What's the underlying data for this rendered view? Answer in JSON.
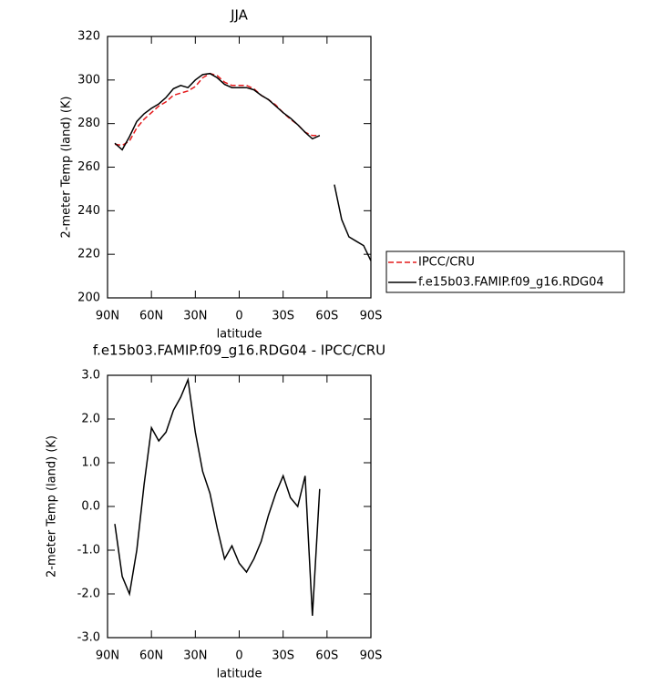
{
  "chart_data": [
    {
      "type": "line",
      "title": "JJA",
      "xlabel": "latitude",
      "ylabel": "2-meter Temp (land) (K)",
      "x": [
        85,
        80,
        75,
        70,
        65,
        60,
        55,
        50,
        45,
        40,
        35,
        30,
        25,
        20,
        15,
        10,
        5,
        0,
        -5,
        -10,
        -15,
        -20,
        -25,
        -30,
        -35,
        -40,
        -45,
        -50,
        -55,
        -60,
        -65,
        -70,
        -75,
        -80,
        -85,
        -90
      ],
      "xlim": [
        90,
        -90
      ],
      "xticks": [
        {
          "value": 90,
          "label": "90N"
        },
        {
          "value": 60,
          "label": "60N"
        },
        {
          "value": 30,
          "label": "30N"
        },
        0,
        {
          "value": -30,
          "label": "30S"
        },
        {
          "value": -60,
          "label": "60S"
        },
        {
          "value": -90,
          "label": "90S"
        }
      ],
      "ylim": [
        200,
        320
      ],
      "yticks": [
        200,
        220,
        240,
        260,
        280,
        300,
        320
      ],
      "legend": "right",
      "series": [
        {
          "name": "IPCC/CRU",
          "color": "#e41a1c",
          "dash": true,
          "values": [
            270.5,
            270,
            272,
            278,
            282,
            285,
            288,
            290,
            293,
            294,
            295,
            297,
            301,
            303,
            302,
            299,
            297.5,
            297.5,
            297.5,
            296,
            293,
            291,
            288.5,
            285,
            282,
            279.5,
            276,
            274.5,
            274.5,
            null,
            null,
            null,
            null,
            null,
            null,
            null
          ]
        },
        {
          "name": "f.e15b03.FAMIP.f09_g16.RDG04",
          "color": "#000000",
          "dash": false,
          "values": [
            271,
            268,
            274,
            281,
            284.5,
            287,
            289,
            292,
            296,
            297.5,
            296.5,
            300,
            302.5,
            303,
            301,
            298,
            296.5,
            296.5,
            296.5,
            295.5,
            293,
            291,
            288,
            285,
            282.5,
            279.5,
            276,
            273,
            274.5,
            null,
            252,
            236,
            228,
            226,
            224,
            217
          ]
        }
      ]
    },
    {
      "type": "line",
      "title": "f.e15b03.FAMIP.f09_g16.RDG04 - IPCC/CRU",
      "xlabel": "latitude",
      "ylabel": "2-meter Temp (land) (K)",
      "x": [
        85,
        80,
        75,
        70,
        65,
        60,
        55,
        50,
        45,
        40,
        35,
        30,
        25,
        20,
        15,
        10,
        5,
        0,
        -5,
        -10,
        -15,
        -20,
        -25,
        -30,
        -35,
        -40,
        -45,
        -50,
        -55
      ],
      "xlim": [
        90,
        -90
      ],
      "xticks": [
        {
          "value": 90,
          "label": "90N"
        },
        {
          "value": 60,
          "label": "60N"
        },
        {
          "value": 30,
          "label": "30N"
        },
        0,
        {
          "value": -30,
          "label": "30S"
        },
        {
          "value": -60,
          "label": "60S"
        },
        {
          "value": -90,
          "label": "90S"
        }
      ],
      "ylim": [
        -3,
        3
      ],
      "yticks": [
        {
          "value": -3,
          "label": "-3.0"
        },
        {
          "value": -2,
          "label": "-2.0"
        },
        {
          "value": -1,
          "label": "-1.0"
        },
        {
          "value": 0,
          "label": "0.0"
        },
        {
          "value": 1,
          "label": "1.0"
        },
        {
          "value": 2,
          "label": "2.0"
        },
        {
          "value": 3,
          "label": "3.0"
        }
      ],
      "series": [
        {
          "color": "#000000",
          "dash": false,
          "values": [
            -0.4,
            -1.6,
            -2.0,
            -1.0,
            0.5,
            1.8,
            1.5,
            1.7,
            2.2,
            2.5,
            2.9,
            1.7,
            0.8,
            0.3,
            -0.5,
            -1.2,
            -0.9,
            -1.3,
            -1.5,
            -1.2,
            -0.8,
            -0.2,
            0.3,
            0.7,
            0.2,
            0.0,
            0.7,
            -2.5,
            0.4
          ]
        }
      ]
    }
  ]
}
